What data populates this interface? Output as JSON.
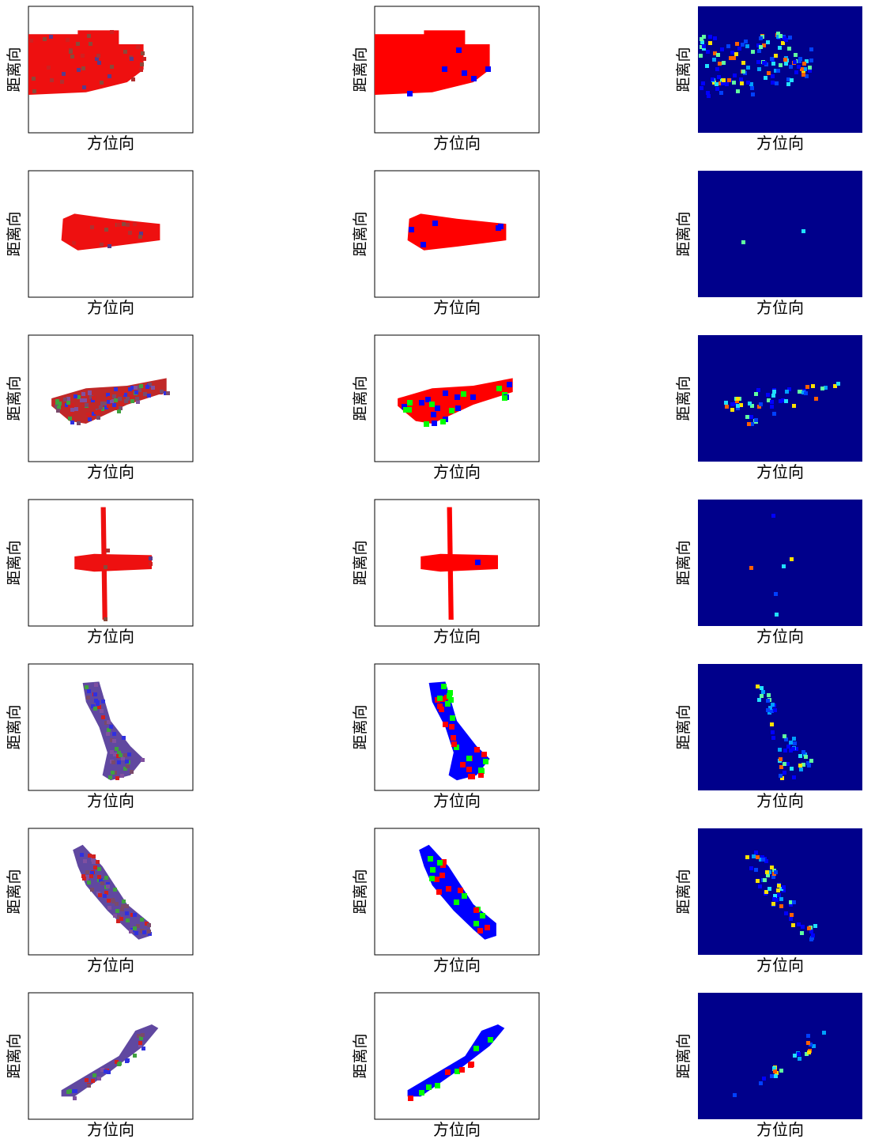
{
  "panels": [
    {
      "xlabel": "方位向",
      "ylabel": "距离向"
    },
    {
      "xlabel": "方位向",
      "ylabel": "距离向"
    },
    {
      "xlabel": "方位向",
      "ylabel": "距离向"
    },
    {
      "xlabel": "方位向",
      "ylabel": "距离向"
    },
    {
      "xlabel": "方位向",
      "ylabel": "距离向"
    },
    {
      "xlabel": "方位向",
      "ylabel": "距离向"
    },
    {
      "xlabel": "方位向",
      "ylabel": "距离向"
    },
    {
      "xlabel": "方位向",
      "ylabel": "距离向"
    },
    {
      "xlabel": "方位向",
      "ylabel": "距离向"
    },
    {
      "xlabel": "方位向",
      "ylabel": "距离向"
    },
    {
      "xlabel": "方位向",
      "ylabel": "距离向"
    },
    {
      "xlabel": "方位向",
      "ylabel": "距离向"
    },
    {
      "xlabel": "方位向",
      "ylabel": "距离向"
    },
    {
      "xlabel": "方位向",
      "ylabel": "距离向"
    },
    {
      "xlabel": "方位向",
      "ylabel": "距离向"
    },
    {
      "xlabel": "方位向",
      "ylabel": "距离向"
    },
    {
      "xlabel": "方位向",
      "ylabel": "距离向"
    },
    {
      "xlabel": "方位向",
      "ylabel": "距离向"
    },
    {
      "xlabel": "方位向",
      "ylabel": "距离向"
    },
    {
      "xlabel": "方位向",
      "ylabel": "距离向"
    },
    {
      "xlabel": "方位向",
      "ylabel": "距离向"
    }
  ]
}
